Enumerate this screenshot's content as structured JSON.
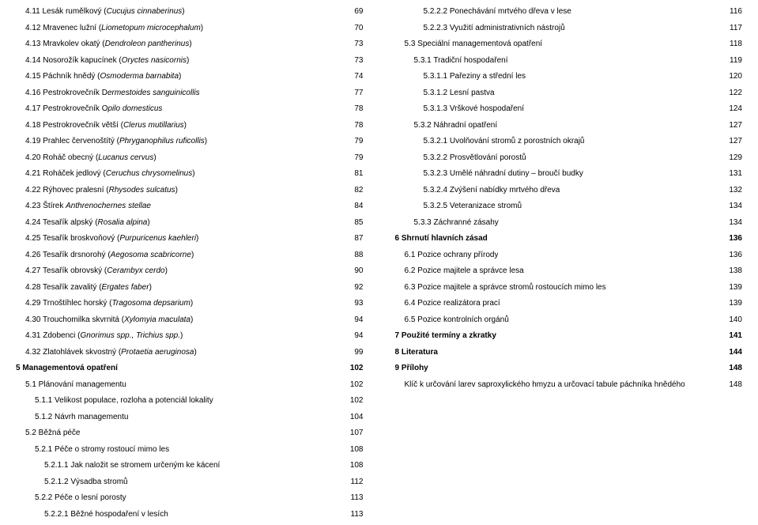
{
  "left": [
    {
      "label": "4.11 Lesák rumělkový (Cucujus cinnaberinus)",
      "italicStart": 21,
      "page": "69",
      "indent": 1
    },
    {
      "label": "4.12 Mravenec lužní (Liometopum microcephalum)",
      "italicStart": 21,
      "page": "70",
      "indent": 1
    },
    {
      "label": "4.13 Mravkolev okatý (Dendroleon pantherinus)",
      "italicStart": 21,
      "page": "73",
      "indent": 1
    },
    {
      "label": "4.14 Nosorožík kapucínek (Oryctes nasicornis)",
      "italicStart": 25,
      "page": "73",
      "indent": 1
    },
    {
      "label": "4.15 Páchník hnědý (Osmoderma barnabita)",
      "italicStart": 20,
      "page": "74",
      "indent": 1
    },
    {
      "label": "4.16 Pestrokrovečník Dermestoides sanguinicollis",
      "italicStart": 22,
      "page": "77",
      "indent": 1
    },
    {
      "label": "4.17 Pestrokrovečník Opilo domesticus",
      "italicStart": 22,
      "page": "78",
      "indent": 1
    },
    {
      "label": "4.18 Pestrokrovečník větší (Clerus mutillarius)",
      "italicStart": 28,
      "page": "78",
      "indent": 1
    },
    {
      "label": "4.19 Prahlec červenoštítý (Phryganophilus ruficollis)",
      "italicStart": 26,
      "page": "79",
      "indent": 1
    },
    {
      "label": "4.20 Roháč obecný (Lucanus cervus)",
      "italicStart": 18,
      "page": "79",
      "indent": 1
    },
    {
      "label": "4.21 Roháček jedlový (Ceruchus chrysomelinus)",
      "italicStart": 21,
      "page": "81",
      "indent": 1
    },
    {
      "label": "4.22 Rýhovec pralesní (Rhysodes sulcatus)",
      "italicStart": 22,
      "page": "82",
      "indent": 1
    },
    {
      "label": "4.23 Štírek Anthrenochernes stellae",
      "italicStart": 12,
      "page": "84",
      "indent": 1
    },
    {
      "label": "4.24 Tesařík alpský (Rosalia alpina)",
      "italicStart": 20,
      "page": "85",
      "indent": 1
    },
    {
      "label": "4.25 Tesařík broskvoňový (Purpuricenus kaehleri)",
      "italicStart": 25,
      "page": "87",
      "indent": 1
    },
    {
      "label": "4.26 Tesařík drsnorohý (Aegosoma scabricorne)",
      "italicStart": 23,
      "page": "88",
      "indent": 1
    },
    {
      "label": "4.27 Tesařík obrovský (Cerambyx cerdo)",
      "italicStart": 22,
      "page": "90",
      "indent": 1
    },
    {
      "label": "4.28 Tesařík zavalitý (Ergates faber)",
      "italicStart": 22,
      "page": "92",
      "indent": 1
    },
    {
      "label": "4.29 Trnoštíhlec horský (Tragosoma depsarium)",
      "italicStart": 24,
      "page": "93",
      "indent": 1
    },
    {
      "label": "4.30 Trouchomilka skvrnitá (Xylomyia maculata)",
      "italicStart": 27,
      "page": "94",
      "indent": 1
    },
    {
      "label": "4.31 Zdobenci (Gnorimus spp., Trichius spp.)",
      "italicStart": 15,
      "page": "94",
      "indent": 1
    },
    {
      "label": "4.32 Zlatohlávek skvostný (Protaetia aeruginosa)",
      "italicStart": 26,
      "page": "99",
      "indent": 1
    },
    {
      "label": "5 Managementová opatření",
      "page": "102",
      "indent": 0,
      "bold": true
    },
    {
      "label": "5.1 Plánování managementu",
      "page": "102",
      "indent": 1
    },
    {
      "label": "5.1.1 Velikost populace, rozloha a potenciál lokality",
      "page": "102",
      "indent": 2
    },
    {
      "label": "5.1.2 Návrh managementu",
      "page": "104",
      "indent": 2
    },
    {
      "label": "5.2 Běžná péče",
      "page": "107",
      "indent": 1
    },
    {
      "label": "5.2.1 Péče o stromy rostoucí mimo les",
      "page": "108",
      "indent": 2
    },
    {
      "label": "5.2.1.1 Jak naložit se stromem určeným ke kácení",
      "page": "108",
      "indent": 3
    },
    {
      "label": "5.2.1.2 Výsadba  stromů",
      "page": "112",
      "indent": 3
    },
    {
      "label": "5.2.2 Péče o lesní porosty",
      "page": "113",
      "indent": 2
    },
    {
      "label": "5.2.2.1 Běžné hospodaření v lesích",
      "page": "113",
      "indent": 3
    }
  ],
  "right": [
    {
      "label": "5.2.2.2 Ponechávání mrtvého dřeva v lese",
      "page": "116",
      "indent": 3
    },
    {
      "label": "5.2.2.3 Využití administrativních nástrojů",
      "page": "117",
      "indent": 3
    },
    {
      "label": "5.3 Speciální managementová opatření",
      "page": "118",
      "indent": 1
    },
    {
      "label": "5.3.1 Tradiční hospodaření",
      "page": "119",
      "indent": 2
    },
    {
      "label": "5.3.1.1 Pařeziny a střední les",
      "page": "120",
      "indent": 3
    },
    {
      "label": "5.3.1.2 Lesní pastva",
      "page": "122",
      "indent": 3
    },
    {
      "label": "5.3.1.3 Vrškové hospodaření",
      "page": "124",
      "indent": 3
    },
    {
      "label": "5.3.2 Náhradní opatření",
      "page": "127",
      "indent": 2
    },
    {
      "label": "5.3.2.1 Uvolňování stromů z porostních okrajů",
      "page": "127",
      "indent": 3
    },
    {
      "label": "5.3.2.2 Prosvětlování porostů",
      "page": "129",
      "indent": 3
    },
    {
      "label": "5.3.2.3 Umělé náhradní dutiny – broučí budky",
      "page": "131",
      "indent": 3
    },
    {
      "label": "5.3.2.4 Zvýšení nabídky mrtvého dřeva",
      "page": "132",
      "indent": 3
    },
    {
      "label": "5.3.2.5 Veteranizace stromů",
      "page": "134",
      "indent": 3
    },
    {
      "label": "5.3.3 Záchranné zásahy",
      "page": "134",
      "indent": 2
    },
    {
      "label": "6 Shrnutí hlavních zásad",
      "page": "136",
      "indent": 0,
      "bold": true
    },
    {
      "label": "6.1 Pozice ochrany přírody",
      "page": "136",
      "indent": 1
    },
    {
      "label": "6.2 Pozice majitele a správce lesa",
      "page": "138",
      "indent": 1
    },
    {
      "label": "6.3 Pozice majitele a správce stromů rostoucích mimo les",
      "page": "139",
      "indent": 1
    },
    {
      "label": "6.4 Pozice realizátora prací",
      "page": "139",
      "indent": 1
    },
    {
      "label": "6.5 Pozice kontrolních orgánů",
      "page": "140",
      "indent": 1
    },
    {
      "label": "7 Použité termíny a zkratky",
      "page": "141",
      "indent": 0,
      "bold": true
    },
    {
      "label": "8 Literatura",
      "page": "144",
      "indent": 0,
      "bold": true
    },
    {
      "label": "9 Přílohy",
      "page": "148",
      "indent": 0,
      "bold": true
    },
    {
      "label": "Klíč k určování larev saproxylického hmyzu a určovací tabule páchníka hnědého",
      "page": "148",
      "indent": 1
    }
  ]
}
